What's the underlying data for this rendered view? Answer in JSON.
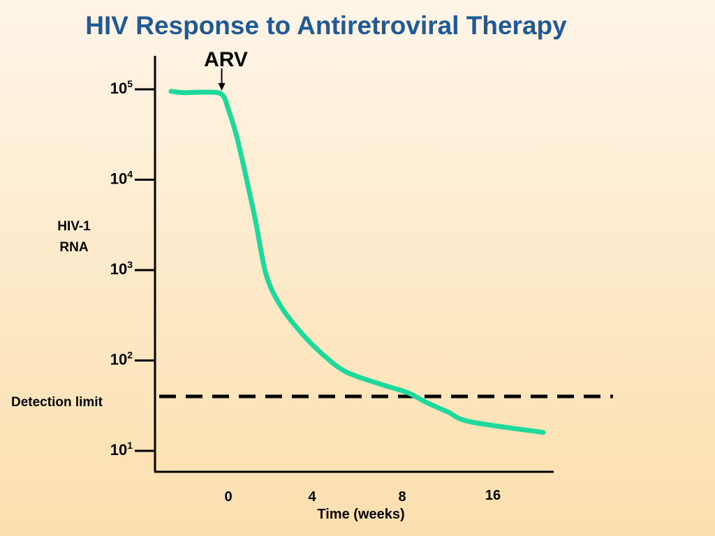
{
  "page": {
    "title": "HIV Response to Antiretroviral Therapy"
  },
  "colors": {
    "title": "#1f5a96",
    "curve": "#1fd89c",
    "axis": "#000000"
  },
  "chart_data": {
    "type": "line",
    "title": "HIV Response to Antiretroviral Therapy",
    "xlabel": "Time (weeks)",
    "ylabel": "HIV-1 RNA",
    "yscale": "log",
    "ylim": [
      8,
      150000
    ],
    "y_ticks": [
      {
        "value": 100000,
        "base": "10",
        "exp": "5"
      },
      {
        "value": 10000,
        "base": "10",
        "exp": "4"
      },
      {
        "value": 1000,
        "base": "10",
        "exp": "3"
      },
      {
        "value": 100,
        "base": "10",
        "exp": "2"
      },
      {
        "value": 10,
        "base": "10",
        "exp": "1"
      }
    ],
    "x_ticks": [
      "0",
      "4",
      "8",
      "16"
    ],
    "annotation": {
      "text": "ARV",
      "at_x": -0.3
    },
    "detection_limit": {
      "label": "Detection limit",
      "value": 40
    },
    "series": [
      {
        "values": [
          {
            "x": -2.6,
            "y": 95000
          },
          {
            "x": -2.0,
            "y": 92000
          },
          {
            "x": -1.0,
            "y": 93000
          },
          {
            "x": -0.3,
            "y": 88000
          },
          {
            "x": 0.0,
            "y": 60000
          },
          {
            "x": 0.4,
            "y": 30000
          },
          {
            "x": 0.8,
            "y": 12000
          },
          {
            "x": 1.3,
            "y": 3500
          },
          {
            "x": 1.8,
            "y": 900
          },
          {
            "x": 2.5,
            "y": 400
          },
          {
            "x": 3.5,
            "y": 200
          },
          {
            "x": 4.5,
            "y": 115
          },
          {
            "x": 5.5,
            "y": 75
          },
          {
            "x": 7.0,
            "y": 55
          },
          {
            "x": 8.5,
            "y": 44
          },
          {
            "x": 10.0,
            "y": 35
          },
          {
            "x": 12.0,
            "y": 27
          },
          {
            "x": 14.0,
            "y": 21
          },
          {
            "x": 18.0,
            "y": 16
          }
        ]
      }
    ]
  }
}
